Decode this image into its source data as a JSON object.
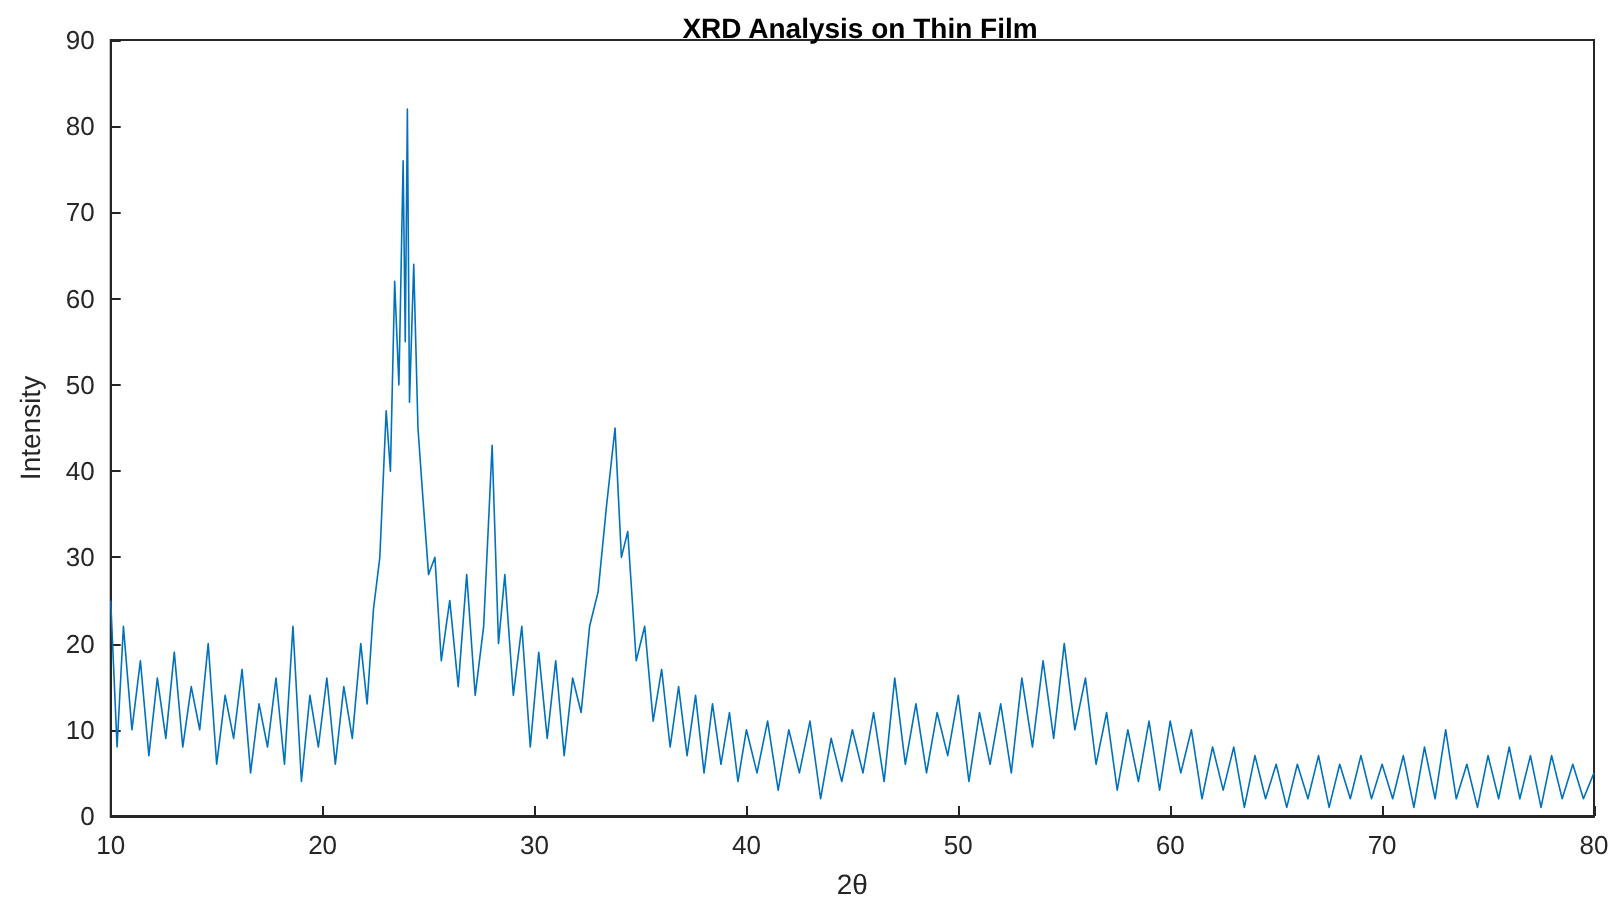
{
  "chart_data": {
    "type": "line",
    "title": "XRD Analysis on Thin Film",
    "xlabel": "2θ",
    "ylabel": "Intensity",
    "xlim": [
      10,
      80
    ],
    "xticks": [
      10,
      20,
      30,
      40,
      50,
      60,
      70,
      80
    ],
    "ylim": [
      0,
      90
    ],
    "yticks": [
      0,
      10,
      20,
      30,
      40,
      50,
      60,
      70,
      80,
      90
    ],
    "grid": false,
    "marker": "none",
    "line_style": "solid",
    "series": [
      {
        "color": "#0072bd",
        "x": [
          10,
          10.3,
          10.6,
          11,
          11.4,
          11.8,
          12.2,
          12.6,
          13,
          13.4,
          13.8,
          14.2,
          14.6,
          15,
          15.4,
          15.8,
          16.2,
          16.6,
          17,
          17.4,
          17.8,
          18.2,
          18.6,
          19,
          19.4,
          19.8,
          20.2,
          20.6,
          21,
          21.4,
          21.8,
          22.1,
          22.4,
          22.7,
          23,
          23.2,
          23.4,
          23.6,
          23.8,
          23.9,
          24,
          24.1,
          24.3,
          24.5,
          24.7,
          25,
          25.3,
          25.6,
          26,
          26.4,
          26.8,
          27.2,
          27.6,
          28,
          28.3,
          28.6,
          29,
          29.4,
          29.8,
          30.2,
          30.6,
          31,
          31.4,
          31.8,
          32.2,
          32.6,
          33,
          33.4,
          33.8,
          34.1,
          34.4,
          34.8,
          35.2,
          35.6,
          36,
          36.4,
          36.8,
          37.2,
          37.6,
          38,
          38.4,
          38.8,
          39.2,
          39.6,
          40,
          40.5,
          41,
          41.5,
          42,
          42.5,
          43,
          43.5,
          44,
          44.5,
          45,
          45.5,
          46,
          46.5,
          47,
          47.5,
          48,
          48.5,
          49,
          49.5,
          50,
          50.5,
          51,
          51.5,
          52,
          52.5,
          53,
          53.5,
          54,
          54.5,
          55,
          55.5,
          56,
          56.5,
          57,
          57.5,
          58,
          58.5,
          59,
          59.5,
          60,
          60.5,
          61,
          61.5,
          62,
          62.5,
          63,
          63.5,
          64,
          64.5,
          65,
          65.5,
          66,
          66.5,
          67,
          67.5,
          68,
          68.5,
          69,
          69.5,
          70,
          70.5,
          71,
          71.5,
          72,
          72.5,
          73,
          73.5,
          74,
          74.5,
          75,
          75.5,
          76,
          76.5,
          77,
          77.5,
          78,
          78.5,
          79,
          79.5,
          80
        ],
        "values": [
          25,
          8,
          22,
          10,
          18,
          7,
          16,
          9,
          19,
          8,
          15,
          10,
          20,
          6,
          14,
          9,
          17,
          5,
          13,
          8,
          16,
          6,
          22,
          4,
          14,
          8,
          16,
          6,
          15,
          9,
          20,
          13,
          24,
          30,
          47,
          40,
          62,
          50,
          76,
          55,
          82,
          48,
          64,
          45,
          38,
          28,
          30,
          18,
          25,
          15,
          28,
          14,
          22,
          43,
          20,
          28,
          14,
          22,
          8,
          19,
          9,
          18,
          7,
          16,
          12,
          22,
          26,
          36,
          45,
          30,
          33,
          18,
          22,
          11,
          17,
          8,
          15,
          7,
          14,
          5,
          13,
          6,
          12,
          4,
          10,
          5,
          11,
          3,
          10,
          5,
          11,
          2,
          9,
          4,
          10,
          5,
          12,
          4,
          16,
          6,
          13,
          5,
          12,
          7,
          14,
          4,
          12,
          6,
          13,
          5,
          16,
          8,
          18,
          9,
          20,
          10,
          16,
          6,
          12,
          3,
          10,
          4,
          11,
          3,
          11,
          5,
          10,
          2,
          8,
          3,
          8,
          1,
          7,
          2,
          6,
          1,
          6,
          2,
          7,
          1,
          6,
          2,
          7,
          2,
          6,
          2,
          7,
          1,
          8,
          2,
          10,
          2,
          6,
          1,
          7,
          2,
          8,
          2,
          7,
          1,
          7,
          2,
          6,
          2,
          5
        ]
      }
    ]
  }
}
